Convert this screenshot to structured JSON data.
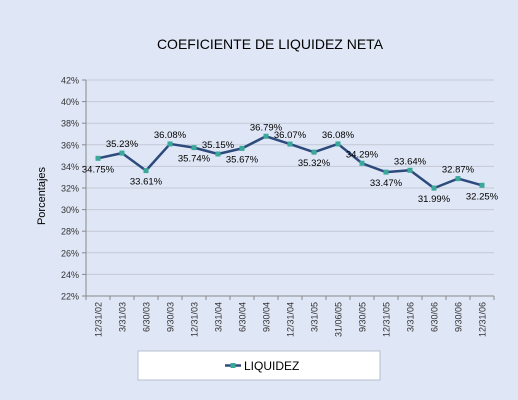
{
  "chart_data": {
    "type": "line",
    "title": "COEFICIENTE DE LIQUIDEZ NETA",
    "xlabel": "",
    "ylabel": "Porcentajes",
    "ylim": [
      22,
      42
    ],
    "y_ticks": [
      22,
      24,
      26,
      28,
      30,
      32,
      34,
      36,
      38,
      40,
      42
    ],
    "y_tick_suffix": "%",
    "grid": "horizontal",
    "legend_position": "bottom",
    "categories": [
      "12/31/02",
      "3/31/03",
      "6/30/03",
      "9/30/03",
      "12/31/03",
      "3/31/04",
      "6/30/04",
      "9/30/04",
      "12/31/04",
      "3/31/05",
      "31/06/05",
      "9/30/05",
      "12/31/05",
      "3/31/06",
      "6/30/06",
      "9/30/06",
      "12/31/06"
    ],
    "series": [
      {
        "name": "LIQUIDEZ",
        "color": "#2c4a7c",
        "marker_color": "#3aa89a",
        "values": [
          34.75,
          35.23,
          33.61,
          36.08,
          35.74,
          35.15,
          35.67,
          36.79,
          36.07,
          35.32,
          36.08,
          34.29,
          33.47,
          33.64,
          31.99,
          32.87,
          32.25
        ],
        "labels": [
          "34.75%",
          "35.23%",
          "33.61%",
          "36.08%",
          "35.74%",
          "35.15%",
          "35.67%",
          "36.79%",
          "36.07%",
          "35.32%",
          "36.08%",
          "34.29%",
          "33.47%",
          "33.64%",
          "31.99%",
          "32.87%",
          "32.25%"
        ]
      }
    ]
  }
}
